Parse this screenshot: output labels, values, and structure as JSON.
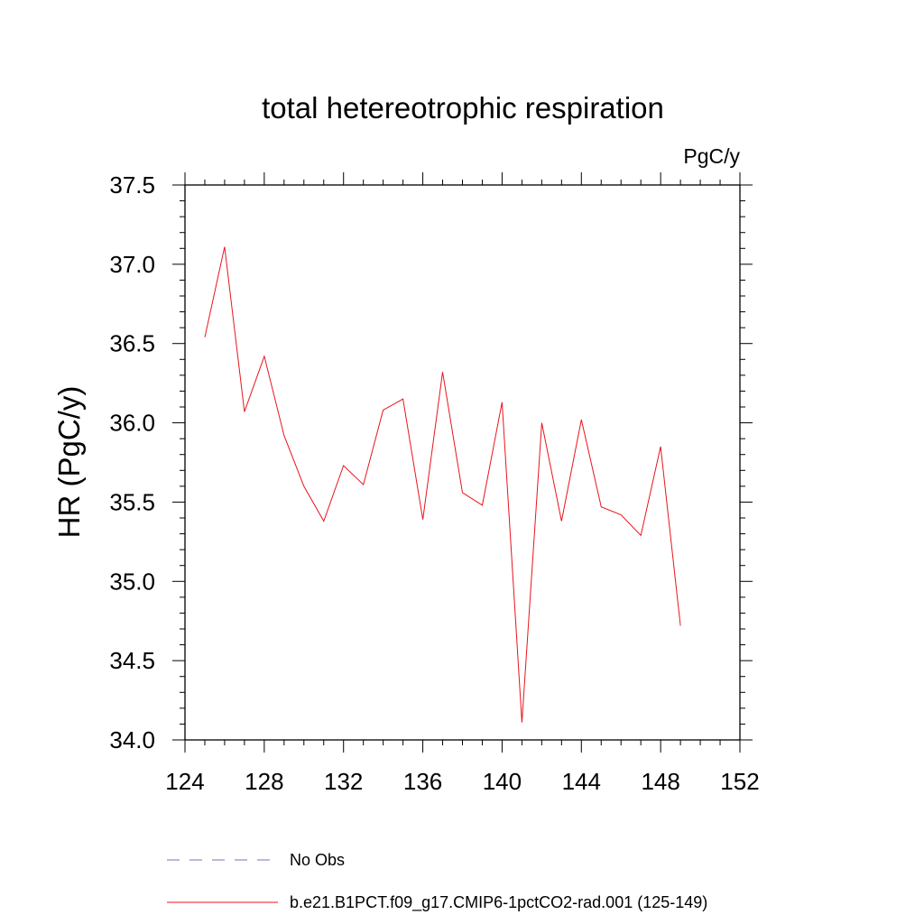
{
  "chart_data": {
    "type": "line",
    "title": "total hetereotrophic respiration",
    "units_label": "PgC/y",
    "ylabel": "HR  (PgC/y)",
    "xlabel": "",
    "xlim": [
      124,
      152
    ],
    "ylim": [
      34.0,
      37.5
    ],
    "x_ticks": [
      "124",
      "128",
      "132",
      "136",
      "140",
      "144",
      "148",
      "152"
    ],
    "y_ticks": [
      "34.0",
      "34.5",
      "35.0",
      "35.5",
      "36.0",
      "36.5",
      "37.0",
      "37.5"
    ],
    "grid": false,
    "legend_position": "bottom",
    "series": [
      {
        "name": "No Obs",
        "color": "#7b6fbf",
        "dash": "dashed",
        "values": []
      },
      {
        "name": "b.e21.B1PCT.f09_g17.CMIP6-1pctCO2-rad.001 (125-149)",
        "color": "#e8141c",
        "dash": "solid",
        "x": [
          125,
          126,
          127,
          128,
          129,
          130,
          131,
          132,
          133,
          134,
          135,
          136,
          137,
          138,
          139,
          140,
          141,
          142,
          143,
          144,
          145,
          146,
          147,
          148,
          149
        ],
        "values": [
          36.54,
          37.11,
          36.07,
          36.42,
          35.92,
          35.6,
          35.38,
          35.73,
          35.61,
          36.08,
          36.15,
          35.39,
          36.32,
          35.56,
          35.48,
          36.13,
          34.11,
          36.0,
          35.38,
          36.02,
          35.47,
          35.42,
          35.29,
          35.85,
          34.72
        ]
      }
    ]
  }
}
